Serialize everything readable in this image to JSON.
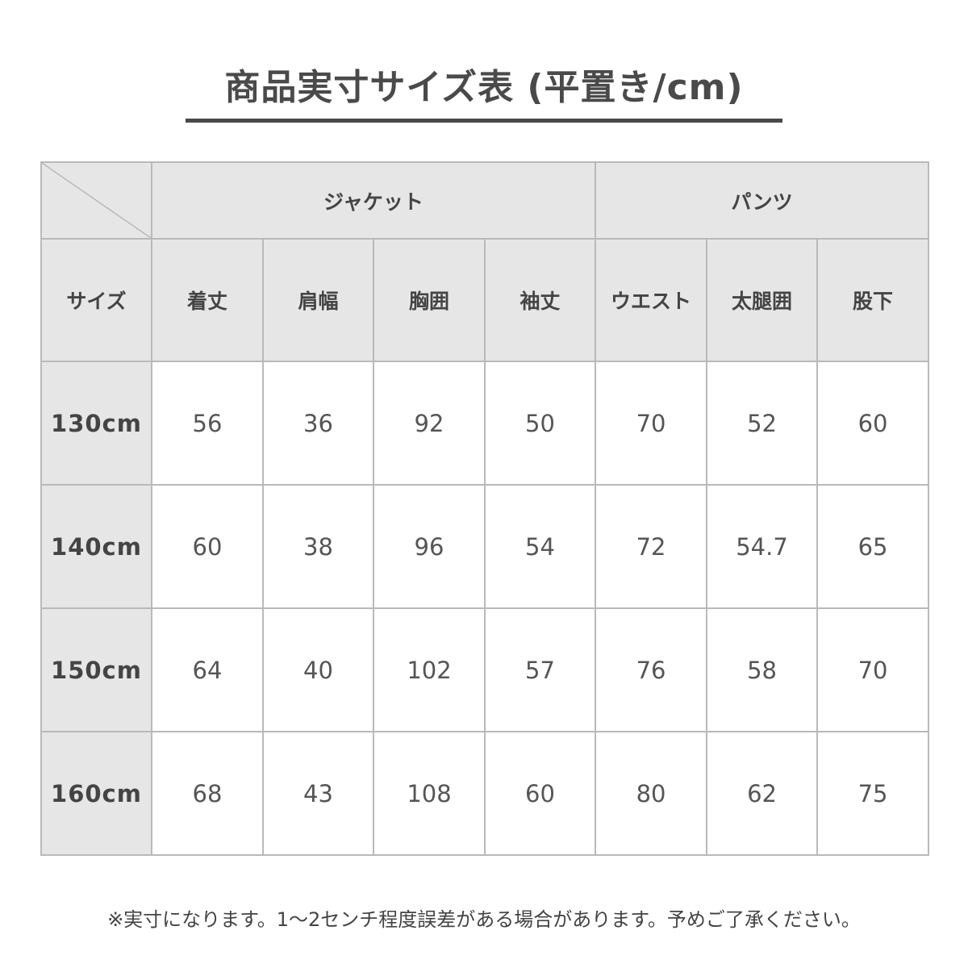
{
  "title": "商品実寸サイズ表 (平置き/cm)",
  "groups": {
    "jacket": "ジャケット",
    "pants": "パンツ"
  },
  "columns": [
    "サイズ",
    "着丈",
    "肩幅",
    "胸囲",
    "袖丈",
    "ウエスト",
    "太腿囲",
    "股下"
  ],
  "rows": [
    [
      "130cm",
      "56",
      "36",
      "92",
      "50",
      "70",
      "52",
      "60"
    ],
    [
      "140cm",
      "60",
      "38",
      "96",
      "54",
      "72",
      "54.7",
      "65"
    ],
    [
      "150cm",
      "64",
      "40",
      "102",
      "57",
      "76",
      "58",
      "70"
    ],
    [
      "160cm",
      "68",
      "43",
      "108",
      "60",
      "80",
      "62",
      "75"
    ]
  ],
  "note": "※実寸になります。1～2センチ程度誤差がある場合があります。予めご了承ください。",
  "colors": {
    "header_bg": "#e6e6e6",
    "border": "#b9b9b9",
    "text": "#4a4a4a"
  }
}
